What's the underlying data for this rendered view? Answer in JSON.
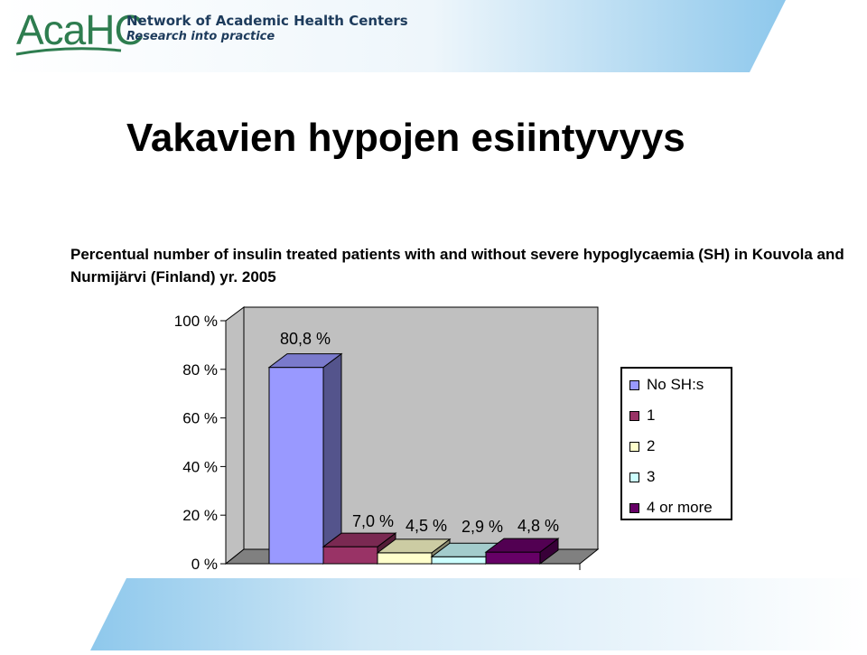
{
  "header": {
    "logo_text": "AcaHC",
    "org_name": "Network of Academic Health Centers",
    "tagline": "Research into practice"
  },
  "title": "Vakavien hypojen esiintyvyys",
  "subtitle": "Percentual  number of insulin treated patients with and without severe hypoglycaemia (SH) in Kouvola and Nurmijärvi (Finland) yr. 2005",
  "colors": {
    "header_accent": "#8ec8ec",
    "logo_green": "#2e7d4f",
    "plot_back": "#c0c0c0",
    "plot_floor": "#808080"
  },
  "chart_data": {
    "type": "bar",
    "three_d": true,
    "categories": [
      "No SH:s",
      "1",
      "2",
      "3",
      "4 or more"
    ],
    "values": [
      80.8,
      7.0,
      4.5,
      2.9,
      4.8
    ],
    "data_labels": [
      "80,8 %",
      "7,0 %",
      "4,5 %",
      "2,9 %",
      "4,8 %"
    ],
    "colors": [
      "#9999ff",
      "#993366",
      "#ffffcc",
      "#ccffff",
      "#660066"
    ],
    "ylim": [
      0,
      100
    ],
    "yticks": [
      0,
      20,
      40,
      60,
      80,
      100
    ],
    "ytick_labels": [
      "0 %",
      "20 %",
      "40 %",
      "60 %",
      "80 %",
      "100 %"
    ],
    "xlabel": "",
    "ylabel": "",
    "grid": false,
    "legend_position": "right",
    "legend": [
      "No SH:s",
      "1",
      "2",
      "3",
      "4 or more"
    ]
  }
}
